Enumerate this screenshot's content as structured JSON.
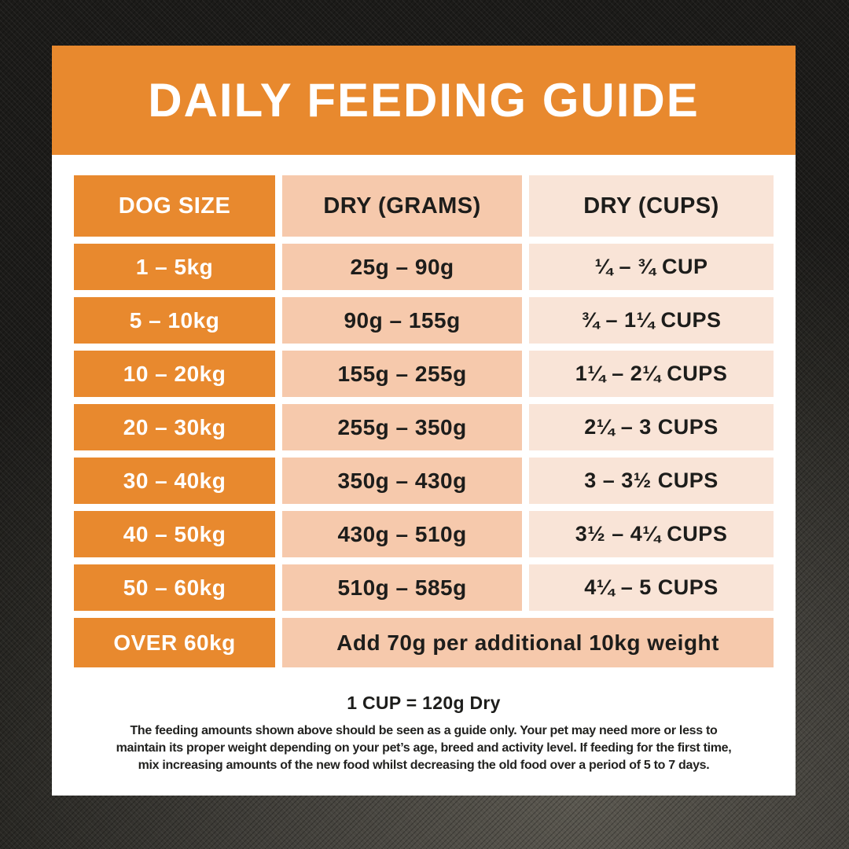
{
  "banner": {
    "title": "DAILY FEEDING GUIDE"
  },
  "table": {
    "headers": [
      "DOG SIZE",
      "DRY (GRAMS)",
      "DRY (CUPS)"
    ],
    "rows": [
      {
        "size": "1 – 5kg",
        "grams": "25g – 90g",
        "cups": "¼ – ¾ CUP"
      },
      {
        "size": "5 – 10kg",
        "grams": "90g – 155g",
        "cups": "¾ – 1¼ CUPS"
      },
      {
        "size": "10 – 20kg",
        "grams": "155g – 255g",
        "cups": "1¼ – 2¼ CUPS"
      },
      {
        "size": "20 – 30kg",
        "grams": "255g – 350g",
        "cups": "2¼ – 3 CUPS"
      },
      {
        "size": "30 – 40kg",
        "grams": "350g – 430g",
        "cups": "3 – 3½ CUPS"
      },
      {
        "size": "40 – 50kg",
        "grams": "430g – 510g",
        "cups": "3½ – 4¼ CUPS"
      },
      {
        "size": "50 – 60kg",
        "grams": "510g – 585g",
        "cups": "4¼ – 5 CUPS"
      }
    ],
    "last_row": {
      "size": "OVER 60kg",
      "note": "Add 70g per additional 10kg weight"
    }
  },
  "footer": {
    "cup_note": "1 CUP = 120g Dry",
    "disclaimer_lines": [
      "The feeding amounts shown above should be seen as a guide only. Your pet may need more or less to",
      "maintain its proper weight depending on your pet’s age, breed and activity level. If feeding for the first time,",
      "mix increasing amounts of the new food whilst decreasing the old food over a period of 5 to 7 days."
    ]
  },
  "colors": {
    "accent_orange": "#E8892E",
    "cell_salmon": "#F6C9AC",
    "cell_blush": "#F9E4D7",
    "text_dark": "#1D1D1B",
    "background_fabric": "#2A2926",
    "card_white": "#FFFFFF"
  }
}
